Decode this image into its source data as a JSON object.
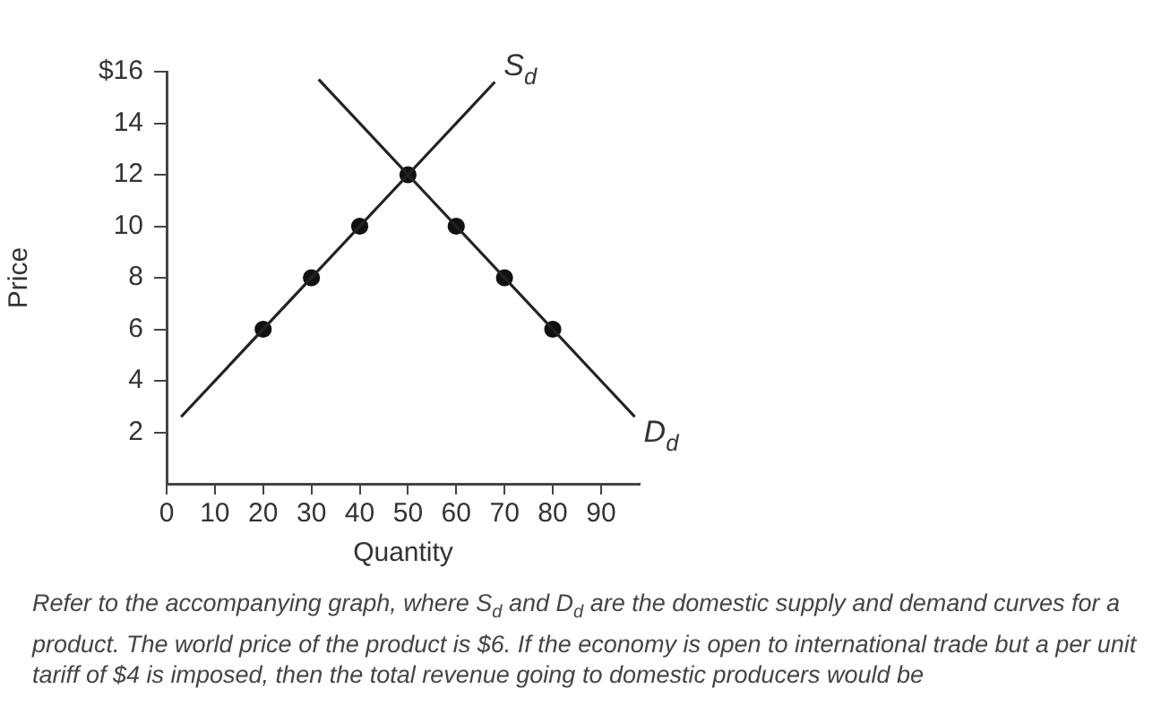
{
  "chart_data": {
    "type": "line",
    "xlabel": "Quantity",
    "ylabel": "Price",
    "xlim": [
      0,
      98
    ],
    "xticks": [
      0,
      10,
      20,
      30,
      40,
      50,
      60,
      70,
      80,
      90
    ],
    "ylim": [
      0,
      16
    ],
    "yticks": [
      {
        "value": 16,
        "label": "$16"
      },
      14,
      12,
      10,
      8,
      6,
      4,
      2
    ],
    "grid": false,
    "legend": false,
    "marker": "none",
    "line_style": "solid",
    "series": [
      {
        "name": "S$_{d}$",
        "color": "#222222",
        "x": [
          3,
          68
        ],
        "values": [
          2.6,
          15.6
        ]
      },
      {
        "name": "D$_{d}$",
        "color": "#222222",
        "x": [
          31.5,
          97
        ],
        "values": [
          15.7,
          2.6
        ]
      },
      {
        "type": "scatter",
        "marker": "circle",
        "color": "#111111",
        "x": [
          20,
          30,
          40,
          50,
          60,
          70,
          80
        ],
        "values": [
          6,
          8,
          10,
          12,
          10,
          8,
          6
        ]
      }
    ],
    "annotations": [
      "Refer to the accompanying graph, where S$_{d}$ and D$_{d}$ are the domestic supply and demand curves for a product. The world price of the product is $6. If the economy is open to international trade but a per unit tariff of $4 is imposed, then the total revenue going to domestic producers would be"
    ]
  }
}
